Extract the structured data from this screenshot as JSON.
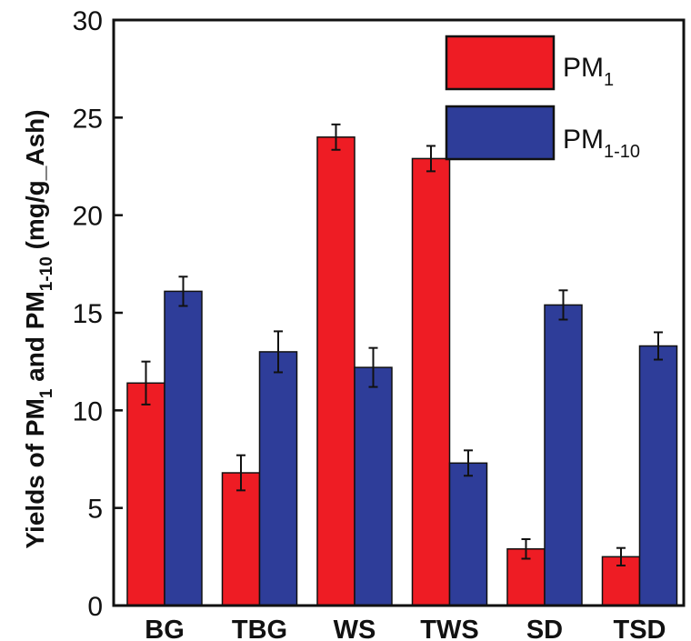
{
  "chart_data": {
    "type": "bar",
    "ylabel": "Yields of PM1 and PM1-10 (mg/g_Ash)",
    "ylabel_parts": {
      "p1": "Yields of PM",
      "s1": "1",
      "p2": " and PM",
      "s2": "1-10",
      "p3": " (mg/g_Ash)"
    },
    "ylim": [
      0,
      30
    ],
    "yticks": [
      0,
      5,
      10,
      15,
      20,
      25,
      30
    ],
    "categories": [
      "BG",
      "TBG",
      "WS",
      "TWS",
      "SD",
      "TSD"
    ],
    "series": [
      {
        "name": "PM1",
        "label_main": "PM",
        "label_sub": "1",
        "color": "#ee1c24",
        "values": [
          11.4,
          6.8,
          24.0,
          22.9,
          2.9,
          2.5
        ],
        "errors": [
          1.1,
          0.9,
          0.65,
          0.65,
          0.5,
          0.45
        ]
      },
      {
        "name": "PM1-10",
        "label_main": "PM",
        "label_sub": "1-10",
        "color": "#2e3d99",
        "values": [
          16.1,
          13.0,
          12.2,
          7.3,
          15.4,
          13.3
        ],
        "errors": [
          0.75,
          1.05,
          1.0,
          0.65,
          0.75,
          0.7
        ]
      }
    ],
    "legend_position": "top-right",
    "grid": false
  }
}
